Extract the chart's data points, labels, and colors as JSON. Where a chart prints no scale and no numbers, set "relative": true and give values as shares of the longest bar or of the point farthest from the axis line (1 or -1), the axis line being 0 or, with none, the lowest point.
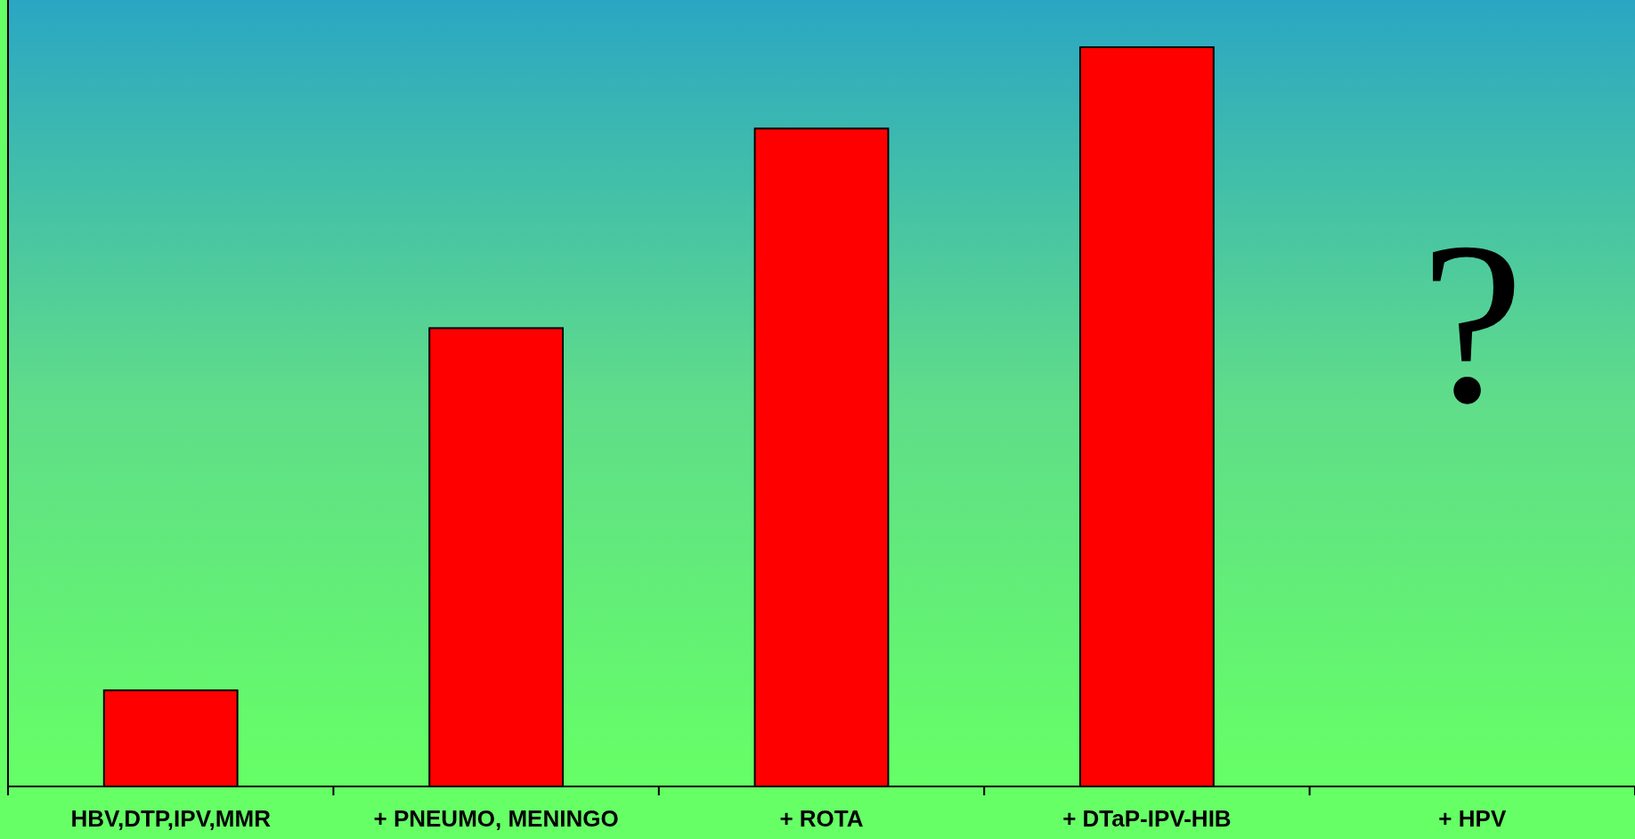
{
  "chart_data": {
    "type": "bar",
    "relative": true,
    "categories": [
      "HBV,DTP,IPV,MMR",
      "+ PNEUMO, MENINGO",
      "+ ROTA",
      "+ DTaP-IPV-HIB",
      "+ HPV"
    ],
    "values": [
      0.13,
      0.62,
      0.89,
      1,
      null
    ],
    "color": "#ff0000",
    "annotations": [
      "?"
    ]
  }
}
